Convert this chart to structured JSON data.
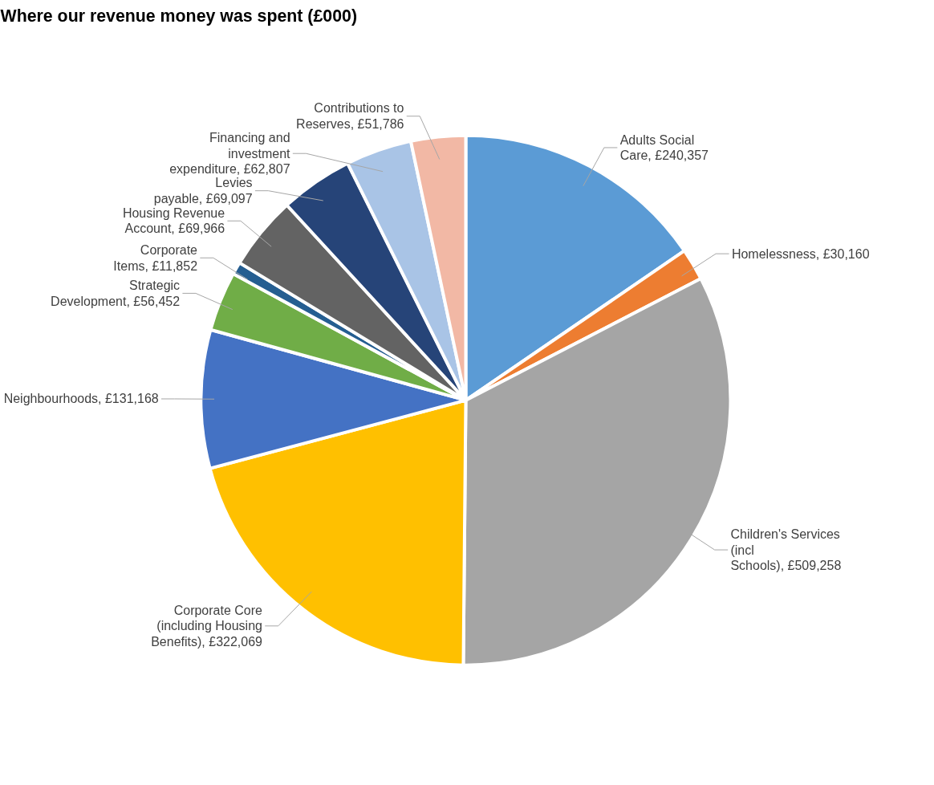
{
  "chart_data": {
    "type": "pie",
    "title": "Where our revenue money was spent (£000)",
    "categories": [
      "Adults Social Care",
      "Homelessness",
      "Children's Services (incl Schools)",
      "Corporate Core (including Housing Benefits)",
      "Neighbourhoods",
      "Strategic Development",
      "Corporate Items",
      "Housing Revenue Account",
      "Levies payable",
      "Financing and investment expenditure",
      "Contributions to Reserves"
    ],
    "values": [
      240357,
      30160,
      509258,
      322069,
      131168,
      56452,
      11852,
      69966,
      69097,
      62807,
      51786
    ],
    "value_labels": [
      "£240,357",
      "£30,160",
      "£509,258",
      "£322,069",
      "£131,168",
      "£56,452",
      "£11,852",
      "£69,966",
      "£69,097",
      "£62,807",
      "£51,786"
    ],
    "colors": [
      "#5b9bd5",
      "#ed7d31",
      "#a5a5a5",
      "#ffc000",
      "#4472c4",
      "#70ad47",
      "#255e91",
      "#636363",
      "#264478",
      "#a9c4e6",
      "#f2b8a5"
    ]
  }
}
